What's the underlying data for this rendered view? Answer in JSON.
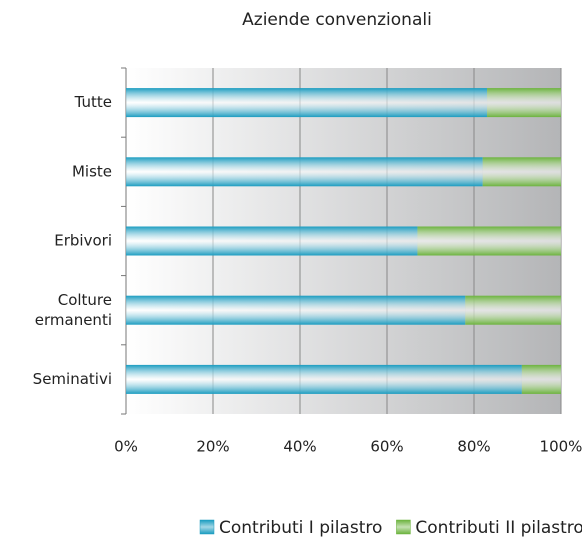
{
  "chart_data": {
    "type": "bar",
    "orientation": "horizontal",
    "stacked": true,
    "title": "Aziende convenzionali",
    "categories": [
      "Tutte",
      "Miste",
      "Erbivori",
      "Colture ermanenti",
      "Seminativi"
    ],
    "series": [
      {
        "name": "Contributi I pilastro",
        "color": "#1b9cc0",
        "values": [
          83,
          82,
          67,
          78,
          91
        ]
      },
      {
        "name": "Contributi II pilastro",
        "color": "#6cb33e",
        "values": [
          17,
          18,
          33,
          22,
          9
        ]
      }
    ],
    "xlim": [
      0,
      100
    ],
    "xticks": [
      {
        "value": 0,
        "label": "0%"
      },
      {
        "value": 20,
        "label": "20%"
      },
      {
        "value": 40,
        "label": "40%"
      },
      {
        "value": 60,
        "label": "60%"
      },
      {
        "value": 80,
        "label": "80%"
      },
      {
        "value": 100,
        "label": "100%"
      }
    ],
    "grid": true,
    "legend": "bottom"
  }
}
